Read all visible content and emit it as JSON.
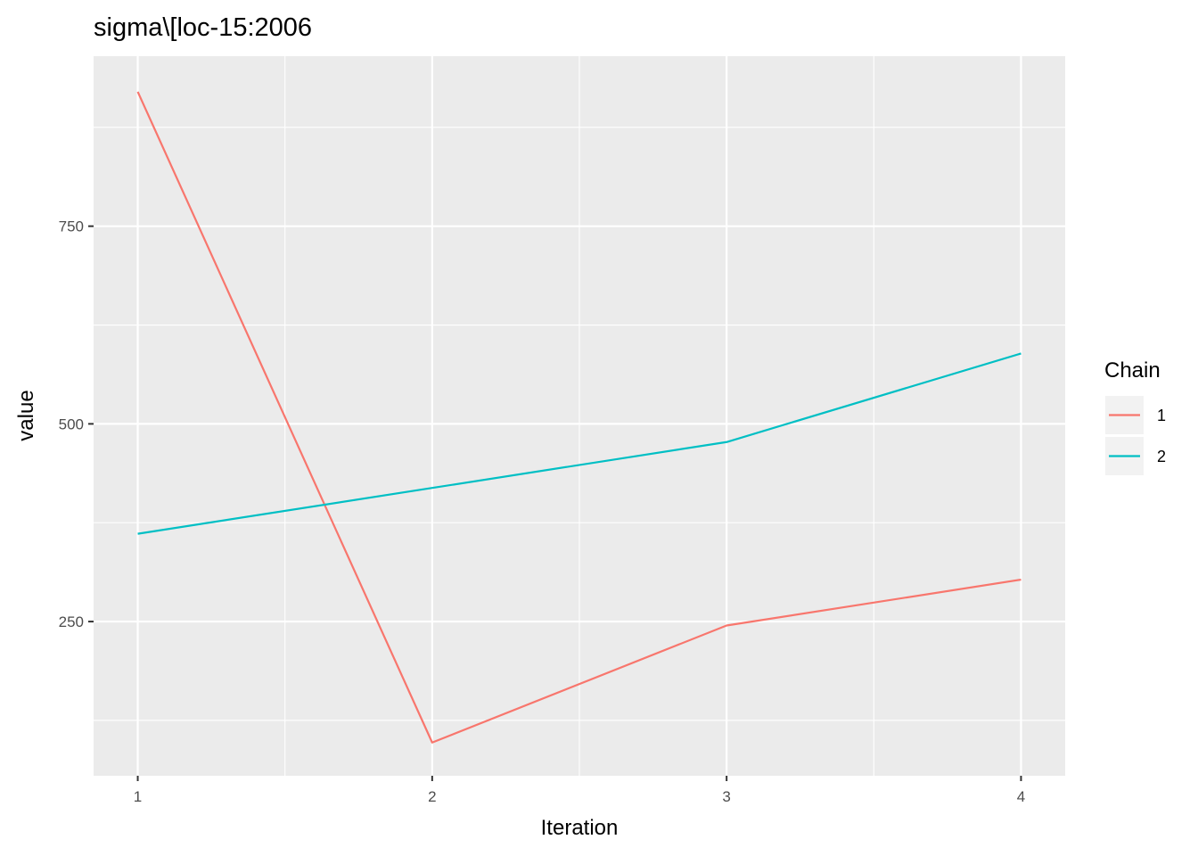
{
  "chart_data": {
    "type": "line",
    "title": "sigma\\[loc-15:2006",
    "xlabel": "Iteration",
    "ylabel": "value",
    "x": [
      1,
      2,
      3,
      4
    ],
    "xticks": [
      1,
      2,
      3,
      4
    ],
    "yticks": [
      250,
      500,
      750
    ],
    "xlim": [
      0.85,
      4.15
    ],
    "ylim": [
      55,
      965
    ],
    "grid": true,
    "legend": {
      "title": "Chain",
      "position": "right"
    },
    "series": [
      {
        "name": "1",
        "color": "#F8766D",
        "values": [
          920,
          97,
          245,
          303
        ]
      },
      {
        "name": "2",
        "color": "#00BFC4",
        "values": [
          361,
          419,
          477,
          589
        ]
      }
    ]
  }
}
